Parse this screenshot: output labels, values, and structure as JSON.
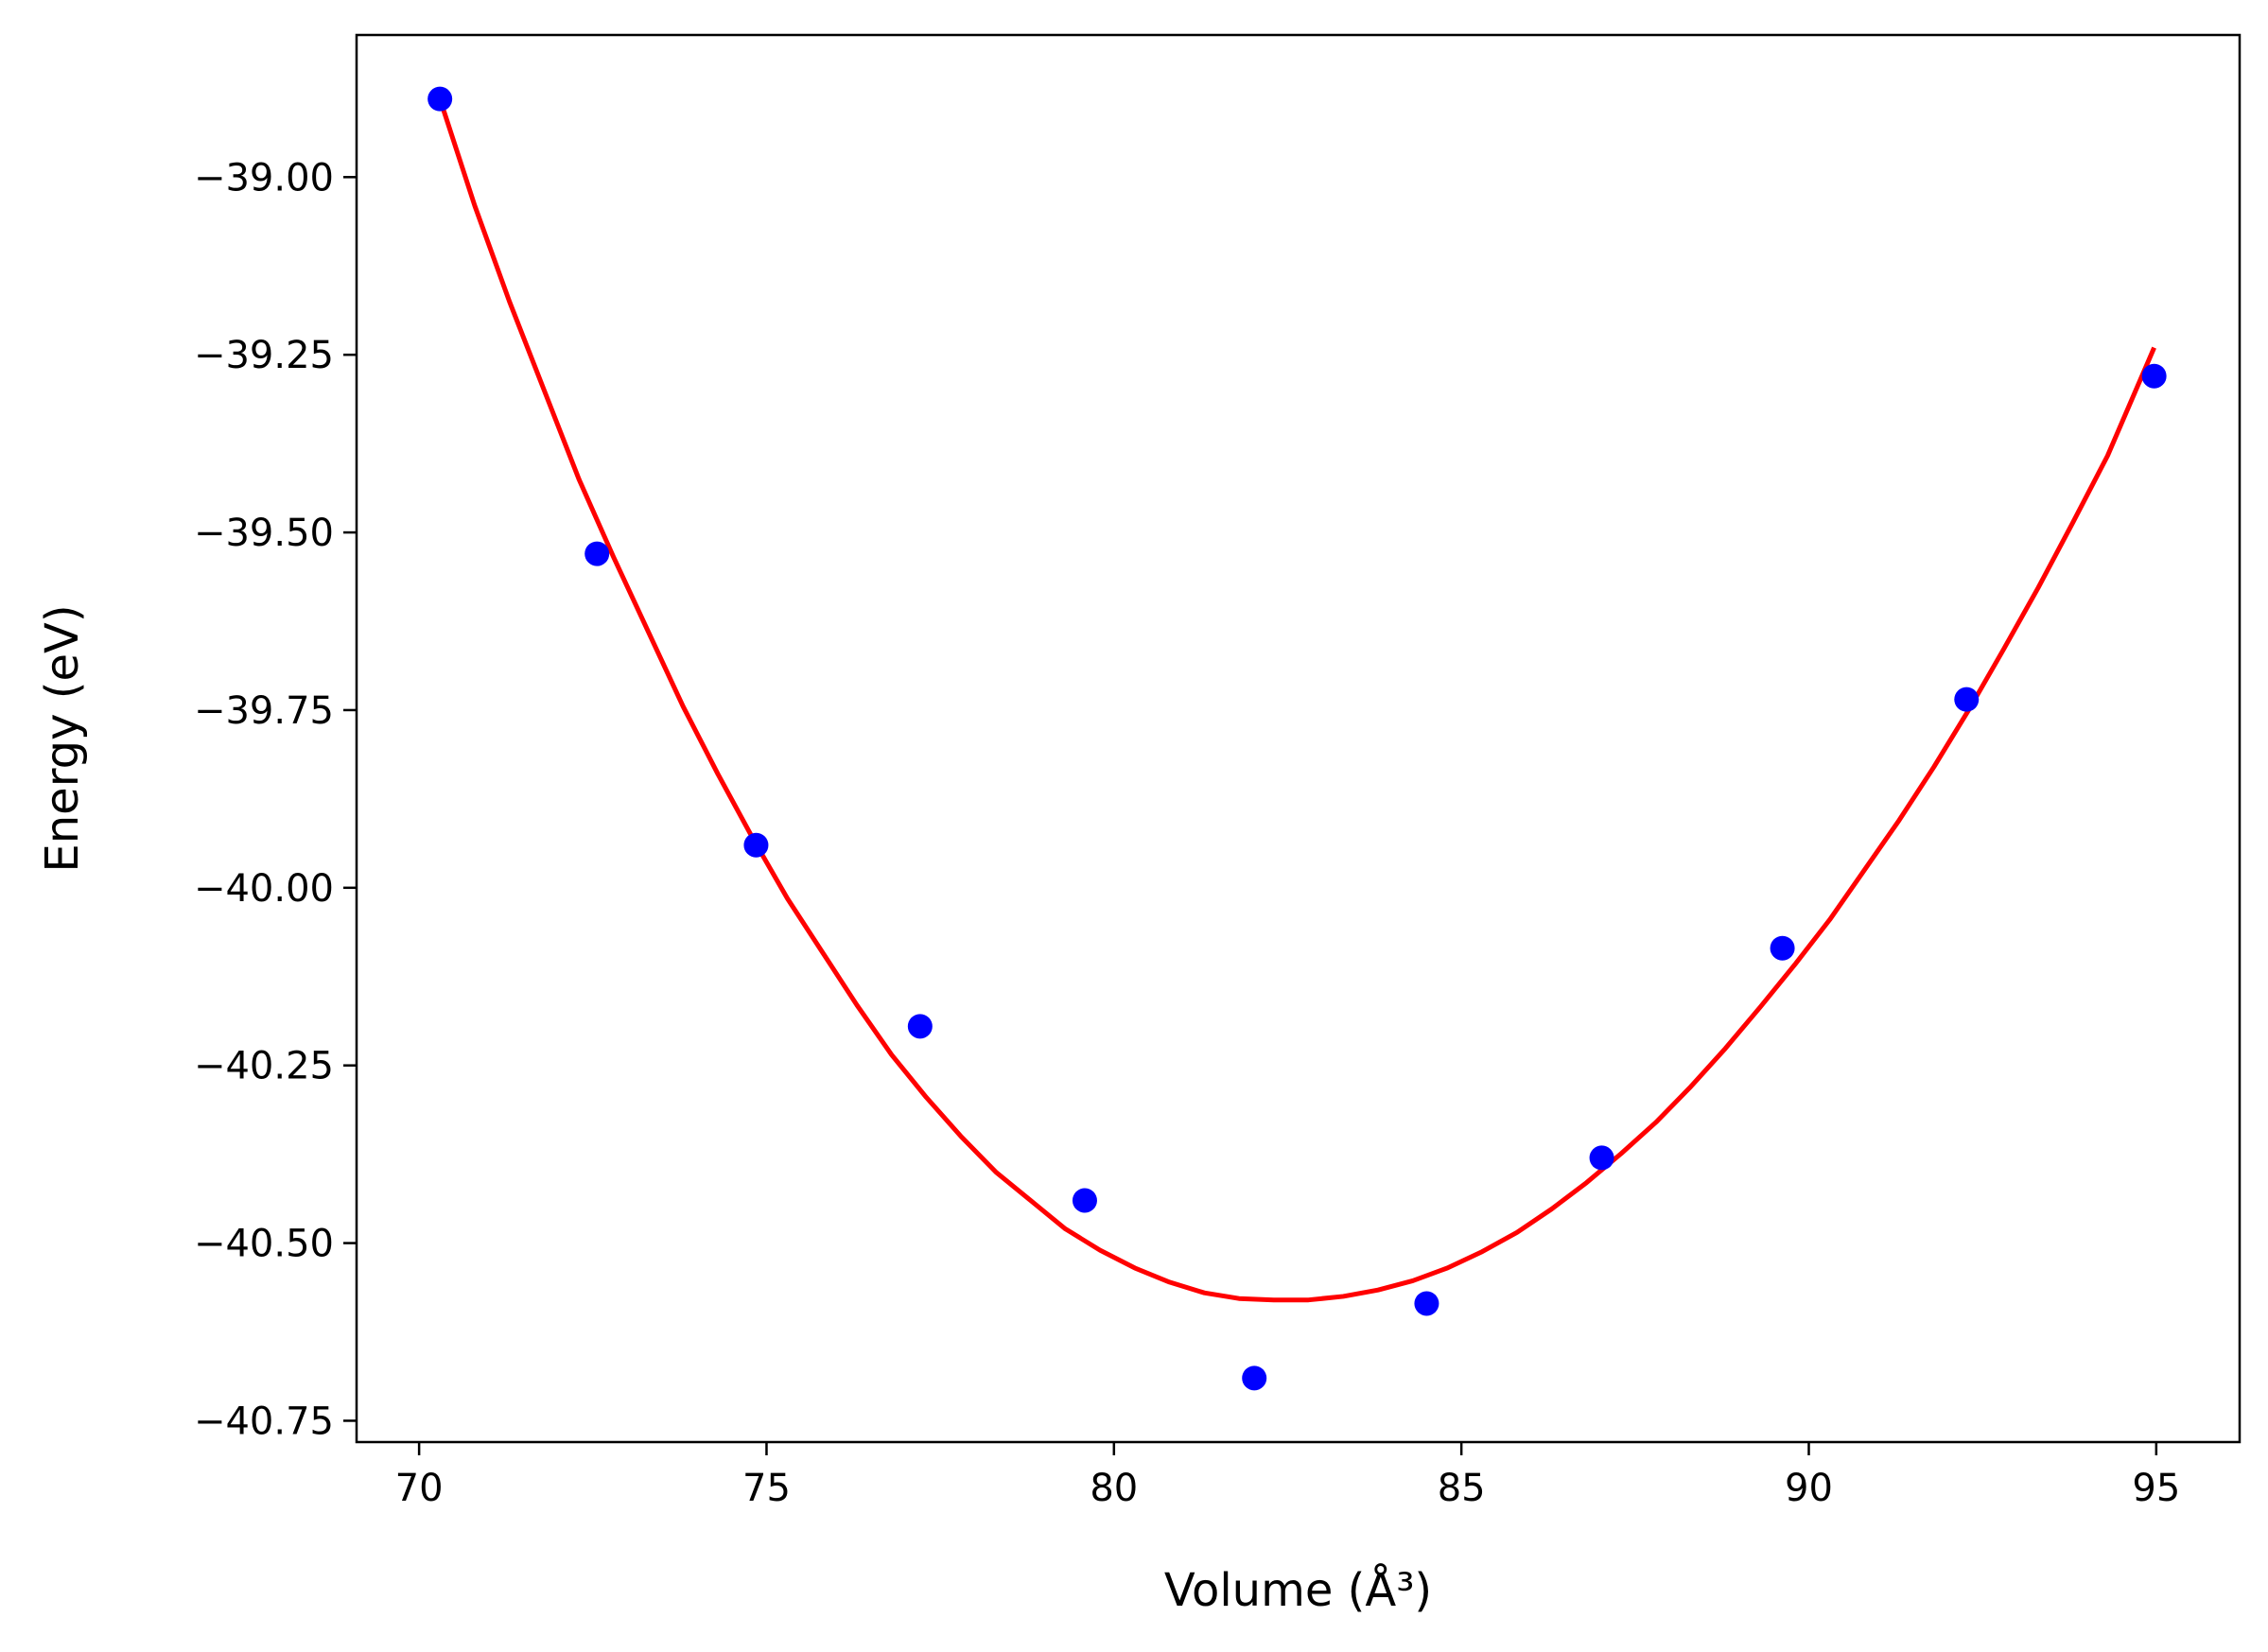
{
  "chart_data": {
    "type": "scatter",
    "xlabel": "Volume (Å³)",
    "ylabel": "Energy (eV)",
    "xlim": [
      69.1,
      96.2
    ],
    "ylim": [
      -40.78,
      -38.8
    ],
    "xticks": [
      70,
      75,
      80,
      85,
      90,
      95
    ],
    "yticks": [
      -39.0,
      -39.25,
      -39.5,
      -39.75,
      -40.0,
      -40.25,
      -40.5,
      -40.75
    ],
    "xtick_labels": [
      "70",
      "75",
      "80",
      "85",
      "90",
      "95"
    ],
    "ytick_labels": [
      "−39.00",
      "−39.25",
      "−39.50",
      "−39.75",
      "−40.00",
      "−40.25",
      "−40.50",
      "−40.75"
    ],
    "series": [
      {
        "kind": "scatter",
        "color": "#0000ff",
        "x": [
          70.3,
          72.56,
          74.85,
          77.21,
          79.58,
          82.02,
          84.5,
          87.02,
          89.62,
          92.27,
          94.97
        ],
        "y": [
          -38.89,
          -39.53,
          -39.94,
          -40.195,
          -40.44,
          -40.69,
          -40.585,
          -40.38,
          -40.085,
          -39.735,
          -39.28
        ]
      },
      {
        "kind": "line",
        "color": "#ff0000",
        "x": [
          70.3,
          70.8,
          71.3,
          71.8,
          72.3,
          72.8,
          73.3,
          73.8,
          74.3,
          74.8,
          75.3,
          75.8,
          76.3,
          76.8,
          77.3,
          77.8,
          78.3,
          78.8,
          79.3,
          79.8,
          80.3,
          80.8,
          81.3,
          81.8,
          82.3,
          82.8,
          83.3,
          83.8,
          84.3,
          84.8,
          85.3,
          85.8,
          86.3,
          86.8,
          87.3,
          87.8,
          88.3,
          88.8,
          89.3,
          89.8,
          90.3,
          90.8,
          91.3,
          91.8,
          92.3,
          92.8,
          93.3,
          93.8,
          94.3,
          94.97
        ],
        "y": [
          -38.89,
          -39.04,
          -39.175,
          -39.3,
          -39.425,
          -39.535,
          -39.64,
          -39.745,
          -39.84,
          -39.93,
          -40.015,
          -40.09,
          -40.165,
          -40.235,
          -40.295,
          -40.35,
          -40.4,
          -40.44,
          -40.48,
          -40.51,
          -40.535,
          -40.555,
          -40.57,
          -40.578,
          -40.58,
          -40.58,
          -40.575,
          -40.566,
          -40.553,
          -40.535,
          -40.512,
          -40.485,
          -40.452,
          -40.415,
          -40.374,
          -40.33,
          -40.28,
          -40.226,
          -40.168,
          -40.108,
          -40.045,
          -39.975,
          -39.905,
          -39.83,
          -39.75,
          -39.665,
          -39.578,
          -39.486,
          -39.392,
          -39.24
        ]
      }
    ]
  }
}
